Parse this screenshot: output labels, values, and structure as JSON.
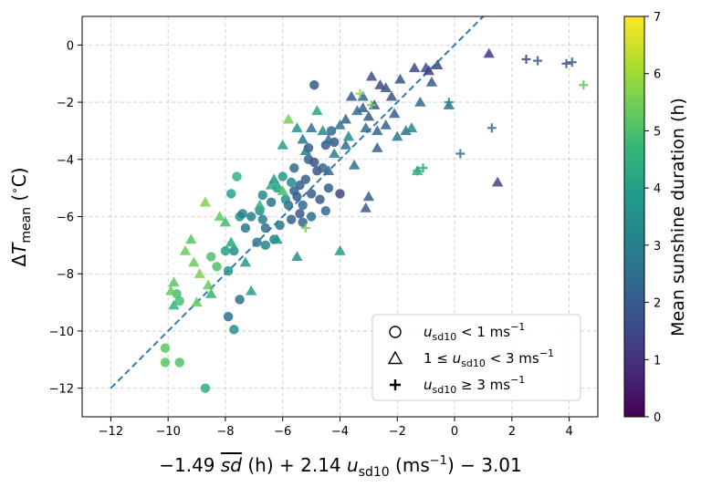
{
  "chart_data": {
    "type": "scatter",
    "xlabel_parts": [
      "−1.49",
      "sd",
      "(h) + 2.14 ",
      "u",
      "sd10",
      "(ms",
      "−1",
      ") − 3.01"
    ],
    "ylabel_parts": [
      "Δ",
      "T",
      "mean",
      "(",
      "∘",
      "C)"
    ],
    "xlim": [
      -13,
      5
    ],
    "ylim": [
      -13,
      1
    ],
    "xticks": [
      -12,
      -10,
      -8,
      -6,
      -4,
      -2,
      0,
      2,
      4
    ],
    "yticks": [
      -12,
      -10,
      -8,
      -6,
      -4,
      -2,
      0
    ],
    "xtick_labels": [
      "−12",
      "−10",
      "−8",
      "−6",
      "−4",
      "−2",
      "0",
      "2",
      "4"
    ],
    "ytick_labels": [
      "−12",
      "−10",
      "−8",
      "−6",
      "−4",
      "−2",
      "0"
    ],
    "grid": true,
    "reference_line": {
      "x": [
        -12,
        1
      ],
      "y": [
        -12,
        1
      ],
      "style": "dashed",
      "color": "#2f7bb5"
    },
    "colorbar": {
      "label": "Mean sunshine duration (h)",
      "range": [
        0,
        7
      ],
      "ticks": [
        "0",
        "1",
        "2",
        "3",
        "4",
        "5",
        "6",
        "7"
      ],
      "colormap": "viridis"
    },
    "legend": {
      "position": "lower-right",
      "entries": [
        {
          "marker": "circle",
          "parts": [
            "u",
            "sd10",
            " < 1 ms",
            "−1"
          ]
        },
        {
          "marker": "triangle",
          "parts": [
            "1 ≤ ",
            "u",
            "sd10",
            " < 3 ms",
            "−1"
          ]
        },
        {
          "marker": "plus",
          "parts": [
            "u",
            "sd10",
            " ≥ 3 ms",
            "−1"
          ]
        }
      ]
    },
    "series": [
      {
        "marker": "circle",
        "points": [
          [
            -10.1,
            -10.6,
            5.2
          ],
          [
            -10.1,
            -11.1,
            5.2
          ],
          [
            -9.6,
            -11.1,
            5.0
          ],
          [
            -8.7,
            -12.0,
            4.4
          ],
          [
            -9.7,
            -8.7,
            4.9
          ],
          [
            -9.6,
            -8.95,
            4.9
          ],
          [
            -8.5,
            -7.4,
            5.0
          ],
          [
            -8.3,
            -7.75,
            5.0
          ],
          [
            -8.0,
            -7.2,
            4.0
          ],
          [
            -7.9,
            -7.9,
            3.6
          ],
          [
            -7.7,
            -7.2,
            3.4
          ],
          [
            -7.9,
            -9.5,
            2.6
          ],
          [
            -7.7,
            -9.95,
            3.5
          ],
          [
            -7.5,
            -8.9,
            2.6
          ],
          [
            -7.8,
            -5.2,
            4.0
          ],
          [
            -7.6,
            -4.6,
            4.5
          ],
          [
            -7.5,
            -6.0,
            3.7
          ],
          [
            -7.4,
            -5.9,
            3.1
          ],
          [
            -7.3,
            -6.4,
            2.7
          ],
          [
            -7.1,
            -6.0,
            3.0
          ],
          [
            -6.9,
            -6.9,
            2.8
          ],
          [
            -6.8,
            -5.8,
            3.6
          ],
          [
            -6.7,
            -5.25,
            3.3
          ],
          [
            -6.6,
            -7.0,
            3.2
          ],
          [
            -6.6,
            -6.4,
            2.5
          ],
          [
            -6.4,
            -5.5,
            2.6
          ],
          [
            -6.2,
            -5.0,
            4.0
          ],
          [
            -6.0,
            -4.6,
            3.8
          ],
          [
            -5.9,
            -5.4,
            3.5
          ],
          [
            -5.7,
            -4.8,
            3.4
          ],
          [
            -5.6,
            -5.1,
            2.2
          ],
          [
            -5.5,
            -5.3,
            2.0
          ],
          [
            -5.3,
            -5.6,
            2.4
          ],
          [
            -5.2,
            -4.7,
            2.1
          ],
          [
            -5.0,
            -5.2,
            2.0
          ],
          [
            -5.1,
            -3.6,
            2.0
          ],
          [
            -4.9,
            -4.1,
            1.9
          ],
          [
            -4.8,
            -4.4,
            1.8
          ],
          [
            -4.6,
            -4.3,
            2.3
          ],
          [
            -4.5,
            -3.5,
            2.0
          ],
          [
            -4.4,
            -5.0,
            2.2
          ],
          [
            -4.3,
            -3.0,
            2.4
          ],
          [
            -4.2,
            -3.4,
            1.9
          ],
          [
            -4.0,
            -5.2,
            1.4
          ],
          [
            -4.9,
            -1.4,
            1.9
          ],
          [
            -5.4,
            -5.9,
            2.0
          ],
          [
            -5.3,
            -6.2,
            2.3
          ],
          [
            -5.7,
            -6.1,
            2.2
          ],
          [
            -6.1,
            -6.3,
            2.7
          ],
          [
            -5.8,
            -5.6,
            2.5
          ],
          [
            -6.3,
            -6.8,
            3.2
          ],
          [
            -5.6,
            -4.3,
            2.3
          ],
          [
            -5.4,
            -4.9,
            2.1
          ],
          [
            -4.7,
            -5.4,
            2.0
          ],
          [
            -5.0,
            -6.0,
            2.6
          ],
          [
            -4.5,
            -5.8,
            2.4
          ],
          [
            -6.7,
            -6.1,
            3.0
          ],
          [
            -5.1,
            -4.0,
            2.1
          ]
        ]
      },
      {
        "marker": "triangle",
        "points": [
          [
            -9.9,
            -8.6,
            5.3
          ],
          [
            -9.8,
            -8.3,
            5.2
          ],
          [
            -9.4,
            -7.2,
            5.4
          ],
          [
            -9.2,
            -6.8,
            5.1
          ],
          [
            -9.1,
            -7.6,
            5.4
          ],
          [
            -8.9,
            -8.0,
            5.6
          ],
          [
            -8.6,
            -8.4,
            5.3
          ],
          [
            -8.5,
            -8.7,
            4.6
          ],
          [
            -9.0,
            -9.0,
            5.3
          ],
          [
            -9.8,
            -9.1,
            4.6
          ],
          [
            -8.7,
            -5.5,
            5.6
          ],
          [
            -8.2,
            -6.0,
            5.3
          ],
          [
            -8.0,
            -6.2,
            4.8
          ],
          [
            -7.8,
            -6.9,
            4.2
          ],
          [
            -7.3,
            -7.6,
            3.8
          ],
          [
            -7.1,
            -8.6,
            3.9
          ],
          [
            -6.8,
            -5.6,
            4.5
          ],
          [
            -6.4,
            -4.9,
            4.2
          ],
          [
            -6.3,
            -4.7,
            3.6
          ],
          [
            -6.0,
            -5.1,
            4.9
          ],
          [
            -6.0,
            -3.5,
            4.0
          ],
          [
            -5.8,
            -2.6,
            5.5
          ],
          [
            -5.5,
            -2.9,
            3.6
          ],
          [
            -5.3,
            -3.3,
            2.8
          ],
          [
            -5.2,
            -3.7,
            2.9
          ],
          [
            -5.0,
            -2.9,
            2.5
          ],
          [
            -4.8,
            -2.3,
            4.2
          ],
          [
            -4.6,
            -3.0,
            3.4
          ],
          [
            -4.4,
            -3.3,
            2.6
          ],
          [
            -4.2,
            -3.8,
            3.0
          ],
          [
            -4.0,
            -2.8,
            2.7
          ],
          [
            -3.8,
            -2.6,
            2.2
          ],
          [
            -3.7,
            -3.2,
            3.3
          ],
          [
            -3.5,
            -4.2,
            2.6
          ],
          [
            -3.4,
            -2.3,
            2.5
          ],
          [
            -3.2,
            -1.8,
            2.3
          ],
          [
            -3.0,
            -2.5,
            1.9
          ],
          [
            -2.8,
            -2.1,
            1.8
          ],
          [
            -2.7,
            -3.6,
            2.2
          ],
          [
            -2.6,
            -1.4,
            1.5
          ],
          [
            -2.4,
            -1.5,
            1.7
          ],
          [
            -2.2,
            -1.8,
            1.7
          ],
          [
            -2.1,
            -2.4,
            2.1
          ],
          [
            -2.0,
            -3.2,
            2.8
          ],
          [
            -1.9,
            -1.2,
            1.8
          ],
          [
            -1.7,
            -3.0,
            2.6
          ],
          [
            -1.5,
            -2.9,
            3.3
          ],
          [
            -1.4,
            -0.8,
            1.5
          ],
          [
            -1.2,
            -2.0,
            2.4
          ],
          [
            -1.0,
            -0.8,
            1.6
          ],
          [
            -0.9,
            -0.9,
            1.3
          ],
          [
            -0.8,
            -1.3,
            2.0
          ],
          [
            -1.3,
            -4.4,
            4.6
          ],
          [
            -0.6,
            -0.7,
            1.5
          ],
          [
            -0.2,
            -2.1,
            2.6
          ],
          [
            -2.9,
            -1.1,
            1.7
          ],
          [
            -3.1,
            -2.9,
            2.4
          ],
          [
            -3.0,
            -5.3,
            2.2
          ],
          [
            -3.1,
            -5.7,
            2.0
          ],
          [
            -2.4,
            -2.8,
            2.1
          ],
          [
            1.2,
            -0.3,
            1.2
          ],
          [
            1.5,
            -4.8,
            1.4
          ],
          [
            -4.0,
            -7.2,
            3.8
          ],
          [
            -5.5,
            -7.4,
            3.5
          ],
          [
            -6.2,
            -6.8,
            3.7
          ],
          [
            -2.7,
            -3.0,
            2.3
          ],
          [
            -3.6,
            -1.8,
            2.0
          ],
          [
            -4.4,
            -4.4,
            2.3
          ],
          [
            -3.8,
            -3.5,
            2.5
          ],
          [
            -3.2,
            -2.2,
            2.1
          ]
        ]
      },
      {
        "marker": "plus",
        "points": [
          [
            -5.2,
            -6.4,
            5.5
          ],
          [
            -3.3,
            -1.7,
            5.8
          ],
          [
            -2.9,
            -2.1,
            5.4
          ],
          [
            -1.3,
            -4.4,
            4.3
          ],
          [
            -1.1,
            -4.3,
            4.0
          ],
          [
            -0.2,
            -2.0,
            3.3
          ],
          [
            0.2,
            -3.8,
            2.8
          ],
          [
            1.3,
            -2.9,
            2.4
          ],
          [
            2.5,
            -0.5,
            1.3
          ],
          [
            2.9,
            -0.55,
            2.0
          ],
          [
            3.9,
            -0.65,
            1.6
          ],
          [
            4.1,
            -0.6,
            1.9
          ],
          [
            4.5,
            -1.4,
            5.2
          ]
        ]
      }
    ]
  }
}
